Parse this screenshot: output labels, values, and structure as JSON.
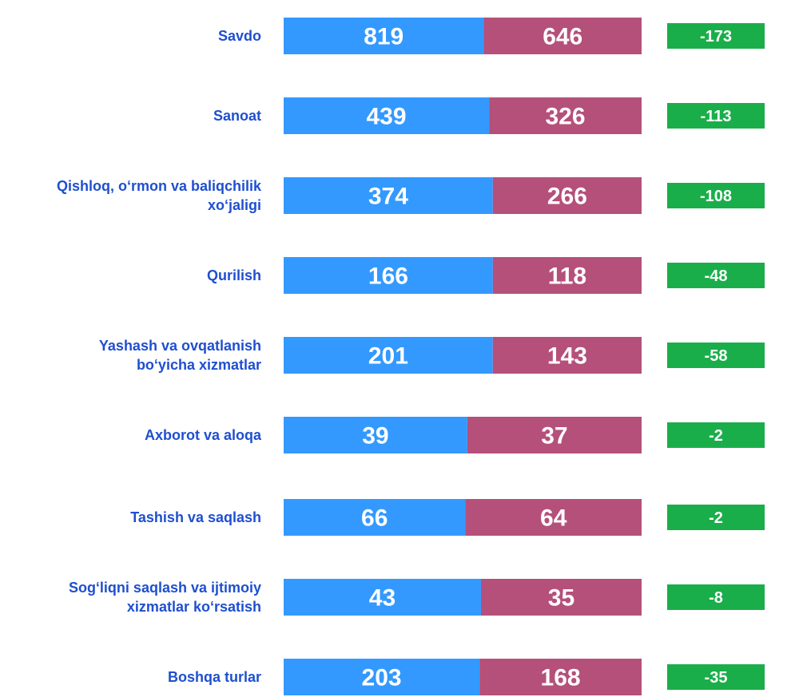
{
  "chart_data": {
    "type": "bar",
    "categories": [
      "Savdo",
      "Sanoat",
      "Qishloq, o‘rmon va baliqchilik\nxo‘jaligi",
      "Qurilish",
      "Yashash va ovqatlanish\nbo‘yicha xizmatlar",
      "Axborot va aloqa",
      "Tashish va saqlash",
      "Sog‘liqni saqlash va ijtimoiy\nxizmatlar ko‘rsatish",
      "Boshqa turlar"
    ],
    "series": [
      {
        "color": "#3399ff",
        "values": [
          819,
          439,
          374,
          166,
          201,
          39,
          66,
          43,
          203
        ]
      },
      {
        "color": "#b5507a",
        "values": [
          646,
          326,
          266,
          118,
          143,
          37,
          64,
          35,
          168
        ]
      }
    ],
    "differences": [
      -173,
      -113,
      -108,
      -48,
      -58,
      -2,
      -2,
      -8,
      -35
    ],
    "differences_color": "#1aae4a"
  }
}
